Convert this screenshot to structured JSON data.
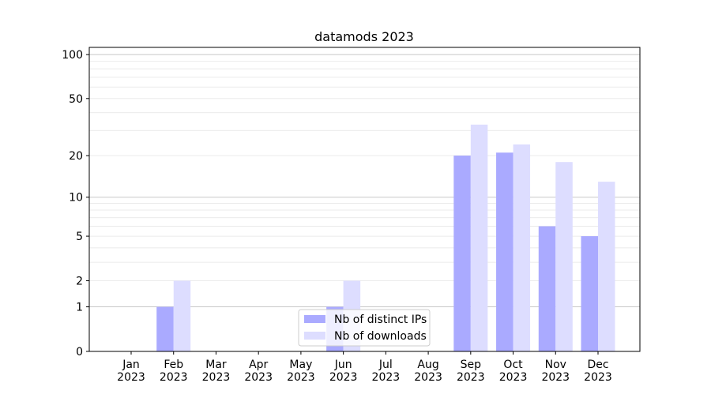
{
  "chart_data": {
    "type": "bar",
    "title": "datamods 2023",
    "xlabel": "",
    "ylabel": "",
    "yscale": "log(1+y)",
    "ylim": [
      0,
      112
    ],
    "yticks": [
      0,
      1,
      2,
      5,
      10,
      20,
      50,
      100
    ],
    "grid": "horizontal major and minor",
    "legend_position": "lower-center",
    "categories": [
      "Jan\n2023",
      "Feb\n2023",
      "Mar\n2023",
      "Apr\n2023",
      "May\n2023",
      "Jun\n2023",
      "Jul\n2023",
      "Aug\n2023",
      "Sep\n2023",
      "Oct\n2023",
      "Nov\n2023",
      "Dec\n2023"
    ],
    "series": [
      {
        "name": "Nb of distinct IPs",
        "color": "#aaaaff",
        "values": [
          0,
          1,
          0,
          0,
          0,
          1,
          0,
          0,
          20,
          21,
          6,
          5
        ]
      },
      {
        "name": "Nb of downloads",
        "color": "#ddddff",
        "values": [
          0,
          2,
          0,
          0,
          0,
          2,
          0,
          0,
          33,
          24,
          18,
          13
        ]
      }
    ]
  }
}
